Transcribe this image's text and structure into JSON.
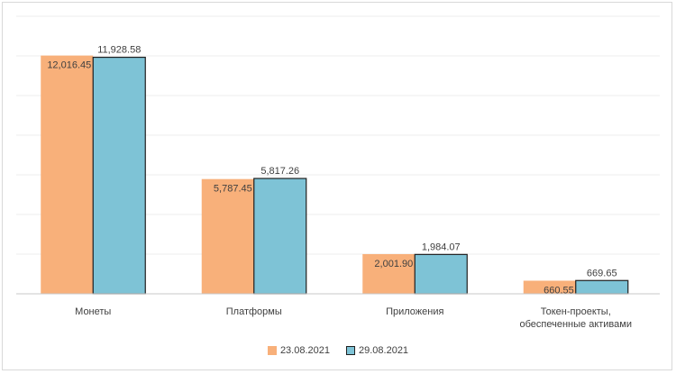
{
  "chart_data": {
    "type": "bar",
    "categories": [
      "Монеты",
      "Платформы",
      "Приложения",
      "Токен-проекты, обеспеченные активами"
    ],
    "category_lines": [
      [
        "Монеты"
      ],
      [
        "Платформы"
      ],
      [
        "Приложения"
      ],
      [
        "Токен-проекты,",
        "обеспеченные активами"
      ]
    ],
    "series": [
      {
        "name": "23.08.2021",
        "values": [
          12016.45,
          5787.45,
          2001.9,
          660.55
        ],
        "labels": [
          "12,016.45",
          "5,787.45",
          "2,001.90",
          "660.55"
        ],
        "color": "#f8b07a",
        "stroke": "#f8b07a"
      },
      {
        "name": "29.08.2021",
        "values": [
          11928.58,
          5817.26,
          1984.07,
          669.65
        ],
        "labels": [
          "11,928.58",
          "5,817.26",
          "1,984.07",
          "669.65"
        ],
        "color": "#7ec3d6",
        "stroke": "#1f1f1f"
      }
    ],
    "ylim": [
      0,
      14000
    ],
    "grid": true,
    "legend_position": "bottom"
  }
}
